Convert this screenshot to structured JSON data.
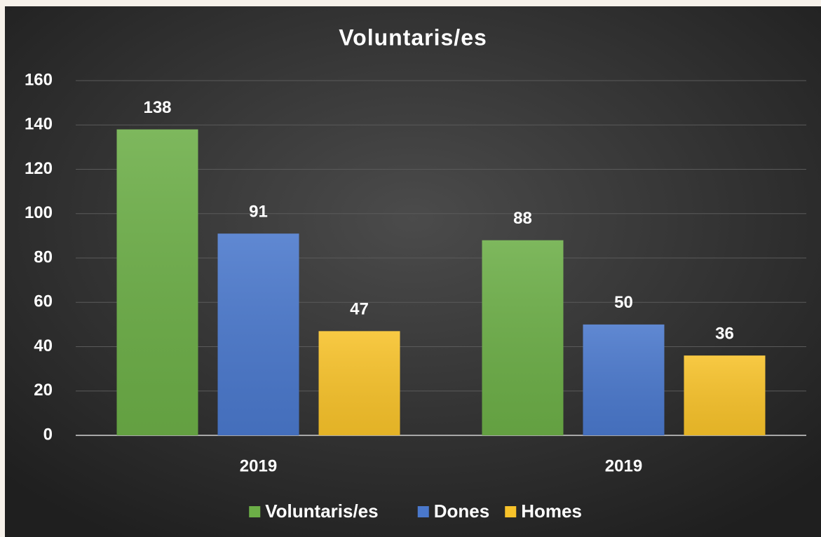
{
  "chart_data": {
    "type": "bar",
    "title": "Voluntaris/es",
    "categories": [
      "2019",
      "2019"
    ],
    "series": [
      {
        "name": "Voluntaris/es",
        "color": "#6cae47",
        "values": [
          138,
          88
        ]
      },
      {
        "name": "Dones",
        "color": "#4a78cc",
        "values": [
          91,
          50
        ]
      },
      {
        "name": "Homes",
        "color": "#f7c22a",
        "values": [
          47,
          36
        ]
      }
    ],
    "ylim": [
      0,
      160
    ],
    "yticks": [
      0,
      20,
      40,
      60,
      80,
      100,
      120,
      140,
      160
    ],
    "grid": true,
    "legend": "bottom"
  }
}
